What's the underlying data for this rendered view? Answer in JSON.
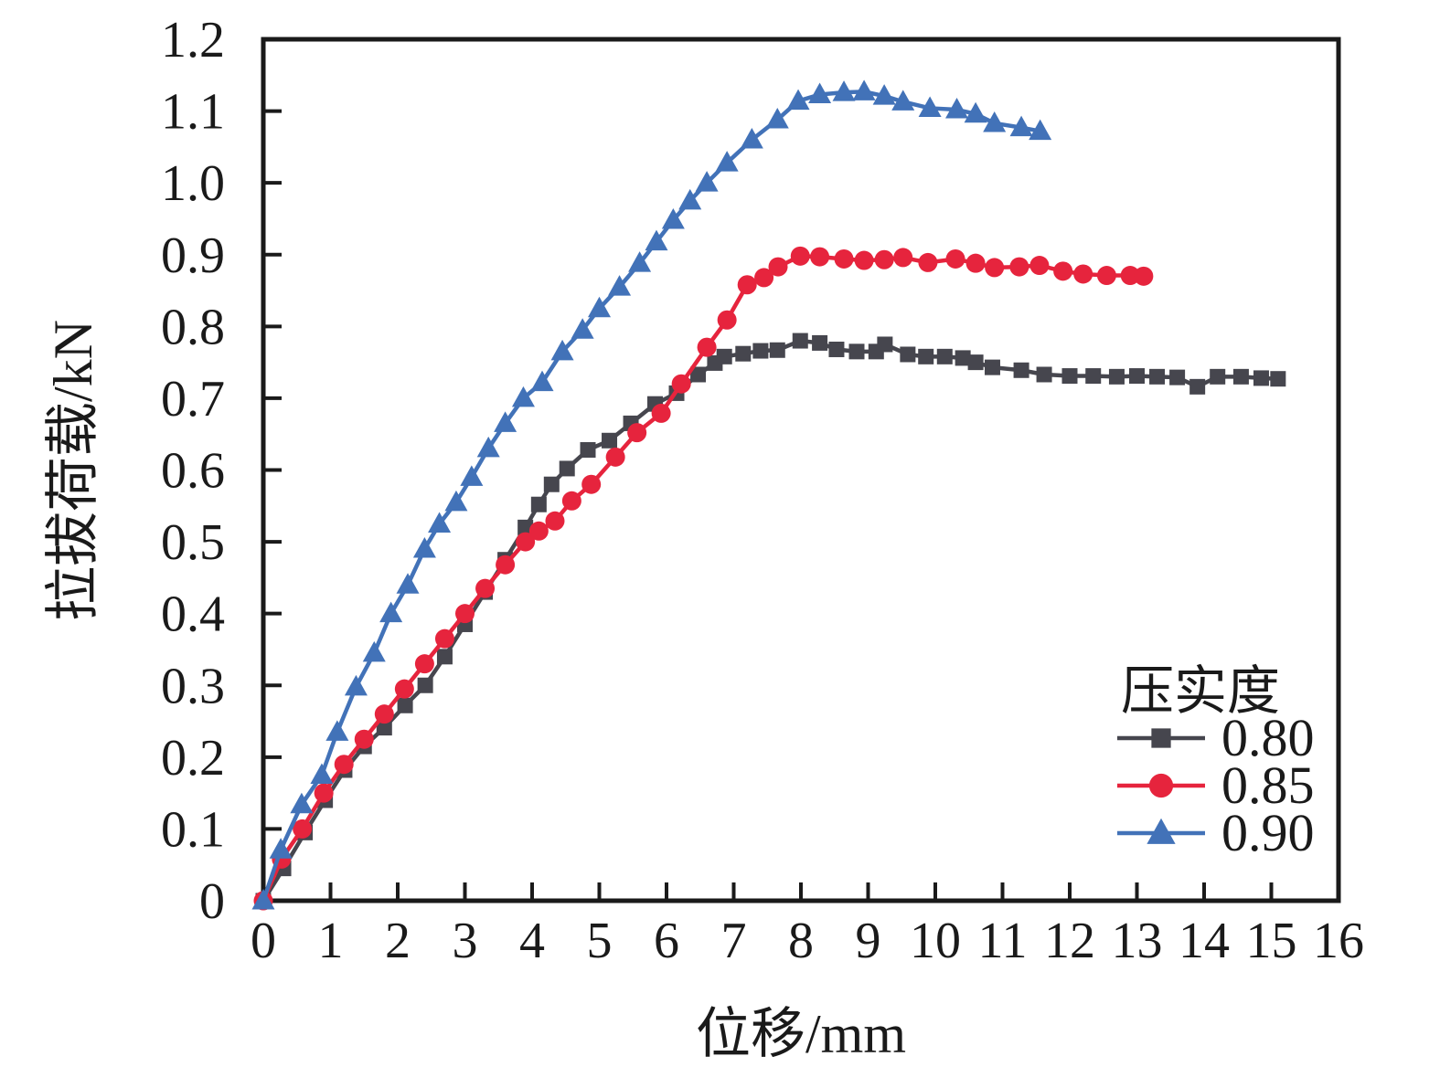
{
  "chart_data": {
    "type": "line",
    "xlabel": "位移/mm",
    "ylabel": "拉拔荷载/kN",
    "xlim": [
      0,
      16
    ],
    "ylim": [
      0,
      1.2
    ],
    "xticks": [
      0,
      1,
      2,
      3,
      4,
      5,
      6,
      7,
      8,
      9,
      10,
      11,
      12,
      13,
      14,
      15,
      16
    ],
    "xtick_labels": [
      "0",
      "1",
      "2",
      "3",
      "4",
      "5",
      "6",
      "7",
      "8",
      "9",
      "10",
      "11",
      "12",
      "13",
      "14",
      "15",
      "16"
    ],
    "yticks": [
      0,
      0.1,
      0.2,
      0.3,
      0.4,
      0.5,
      0.6,
      0.7,
      0.8,
      0.9,
      1.0,
      1.1,
      1.2
    ],
    "ytick_labels": [
      "0",
      "0.1",
      "0.2",
      "0.3",
      "0.4",
      "0.5",
      "0.6",
      "0.7",
      "0.8",
      "0.9",
      "1.0",
      "1.1",
      "1.2"
    ],
    "grid": false,
    "legend": {
      "title": "压实度",
      "position": "lower-right"
    },
    "axis_color": "#1a1a1a",
    "series": [
      {
        "name": "0.80",
        "marker": "square",
        "color": "#46464e",
        "points": [
          [
            0,
            0
          ],
          [
            0.3,
            0.045
          ],
          [
            0.62,
            0.095
          ],
          [
            0.92,
            0.14
          ],
          [
            1.21,
            0.182
          ],
          [
            1.5,
            0.215
          ],
          [
            1.8,
            0.241
          ],
          [
            2.11,
            0.272
          ],
          [
            2.41,
            0.3
          ],
          [
            2.7,
            0.34
          ],
          [
            3.0,
            0.385
          ],
          [
            3.3,
            0.43
          ],
          [
            3.6,
            0.475
          ],
          [
            3.9,
            0.52
          ],
          [
            4.1,
            0.552
          ],
          [
            4.29,
            0.58
          ],
          [
            4.52,
            0.602
          ],
          [
            4.83,
            0.628
          ],
          [
            5.15,
            0.641
          ],
          [
            5.47,
            0.665
          ],
          [
            5.83,
            0.692
          ],
          [
            6.15,
            0.707
          ],
          [
            6.47,
            0.733
          ],
          [
            6.72,
            0.749
          ],
          [
            6.86,
            0.758
          ],
          [
            7.14,
            0.762
          ],
          [
            7.4,
            0.766
          ],
          [
            7.65,
            0.767
          ],
          [
            7.99,
            0.78
          ],
          [
            8.28,
            0.777
          ],
          [
            8.53,
            0.768
          ],
          [
            8.83,
            0.765
          ],
          [
            9.12,
            0.765
          ],
          [
            9.25,
            0.775
          ],
          [
            9.59,
            0.761
          ],
          [
            9.86,
            0.758
          ],
          [
            10.14,
            0.758
          ],
          [
            10.41,
            0.756
          ],
          [
            10.6,
            0.75
          ],
          [
            10.85,
            0.743
          ],
          [
            11.28,
            0.739
          ],
          [
            11.62,
            0.733
          ],
          [
            12.0,
            0.731
          ],
          [
            12.35,
            0.731
          ],
          [
            12.7,
            0.73
          ],
          [
            13.0,
            0.731
          ],
          [
            13.3,
            0.73
          ],
          [
            13.6,
            0.729
          ],
          [
            13.9,
            0.716
          ],
          [
            14.2,
            0.73
          ],
          [
            14.55,
            0.73
          ],
          [
            14.85,
            0.728
          ],
          [
            15.1,
            0.727
          ]
        ]
      },
      {
        "name": "0.85",
        "marker": "circle",
        "color": "#e6243d",
        "points": [
          [
            0,
            0
          ],
          [
            0.27,
            0.058
          ],
          [
            0.58,
            0.1
          ],
          [
            0.9,
            0.15
          ],
          [
            1.2,
            0.19
          ],
          [
            1.5,
            0.225
          ],
          [
            1.8,
            0.26
          ],
          [
            2.1,
            0.295
          ],
          [
            2.4,
            0.33
          ],
          [
            2.7,
            0.365
          ],
          [
            3.0,
            0.4
          ],
          [
            3.3,
            0.435
          ],
          [
            3.6,
            0.468
          ],
          [
            3.9,
            0.5
          ],
          [
            4.1,
            0.515
          ],
          [
            4.34,
            0.529
          ],
          [
            4.59,
            0.557
          ],
          [
            4.88,
            0.58
          ],
          [
            5.24,
            0.618
          ],
          [
            5.56,
            0.652
          ],
          [
            5.92,
            0.679
          ],
          [
            6.22,
            0.72
          ],
          [
            6.6,
            0.771
          ],
          [
            6.9,
            0.809
          ],
          [
            7.2,
            0.858
          ],
          [
            7.45,
            0.868
          ],
          [
            7.66,
            0.883
          ],
          [
            7.99,
            0.898
          ],
          [
            8.28,
            0.897
          ],
          [
            8.64,
            0.894
          ],
          [
            8.94,
            0.892
          ],
          [
            9.24,
            0.893
          ],
          [
            9.52,
            0.896
          ],
          [
            9.89,
            0.889
          ],
          [
            10.3,
            0.894
          ],
          [
            10.6,
            0.888
          ],
          [
            10.88,
            0.882
          ],
          [
            11.25,
            0.883
          ],
          [
            11.55,
            0.885
          ],
          [
            11.9,
            0.877
          ],
          [
            12.2,
            0.873
          ],
          [
            12.55,
            0.871
          ],
          [
            12.9,
            0.871
          ],
          [
            13.1,
            0.87
          ]
        ]
      },
      {
        "name": "0.90",
        "marker": "triangle",
        "color": "#4272b8",
        "points": [
          [
            0,
            0
          ],
          [
            0.26,
            0.071
          ],
          [
            0.57,
            0.134
          ],
          [
            0.87,
            0.175
          ],
          [
            1.1,
            0.235
          ],
          [
            1.38,
            0.298
          ],
          [
            1.65,
            0.345
          ],
          [
            1.9,
            0.4
          ],
          [
            2.15,
            0.44
          ],
          [
            2.4,
            0.49
          ],
          [
            2.62,
            0.525
          ],
          [
            2.87,
            0.555
          ],
          [
            3.1,
            0.59
          ],
          [
            3.35,
            0.63
          ],
          [
            3.6,
            0.665
          ],
          [
            3.87,
            0.7
          ],
          [
            4.15,
            0.722
          ],
          [
            4.45,
            0.765
          ],
          [
            4.75,
            0.795
          ],
          [
            5.0,
            0.825
          ],
          [
            5.3,
            0.855
          ],
          [
            5.6,
            0.888
          ],
          [
            5.85,
            0.918
          ],
          [
            6.1,
            0.948
          ],
          [
            6.35,
            0.975
          ],
          [
            6.6,
            1.0
          ],
          [
            6.9,
            1.028
          ],
          [
            7.27,
            1.06
          ],
          [
            7.65,
            1.088
          ],
          [
            7.96,
            1.114
          ],
          [
            8.28,
            1.123
          ],
          [
            8.64,
            1.126
          ],
          [
            8.94,
            1.127
          ],
          [
            9.24,
            1.121
          ],
          [
            9.52,
            1.113
          ],
          [
            9.92,
            1.104
          ],
          [
            10.32,
            1.102
          ],
          [
            10.6,
            1.096
          ],
          [
            10.88,
            1.083
          ],
          [
            11.28,
            1.077
          ],
          [
            11.56,
            1.072
          ]
        ]
      }
    ]
  }
}
